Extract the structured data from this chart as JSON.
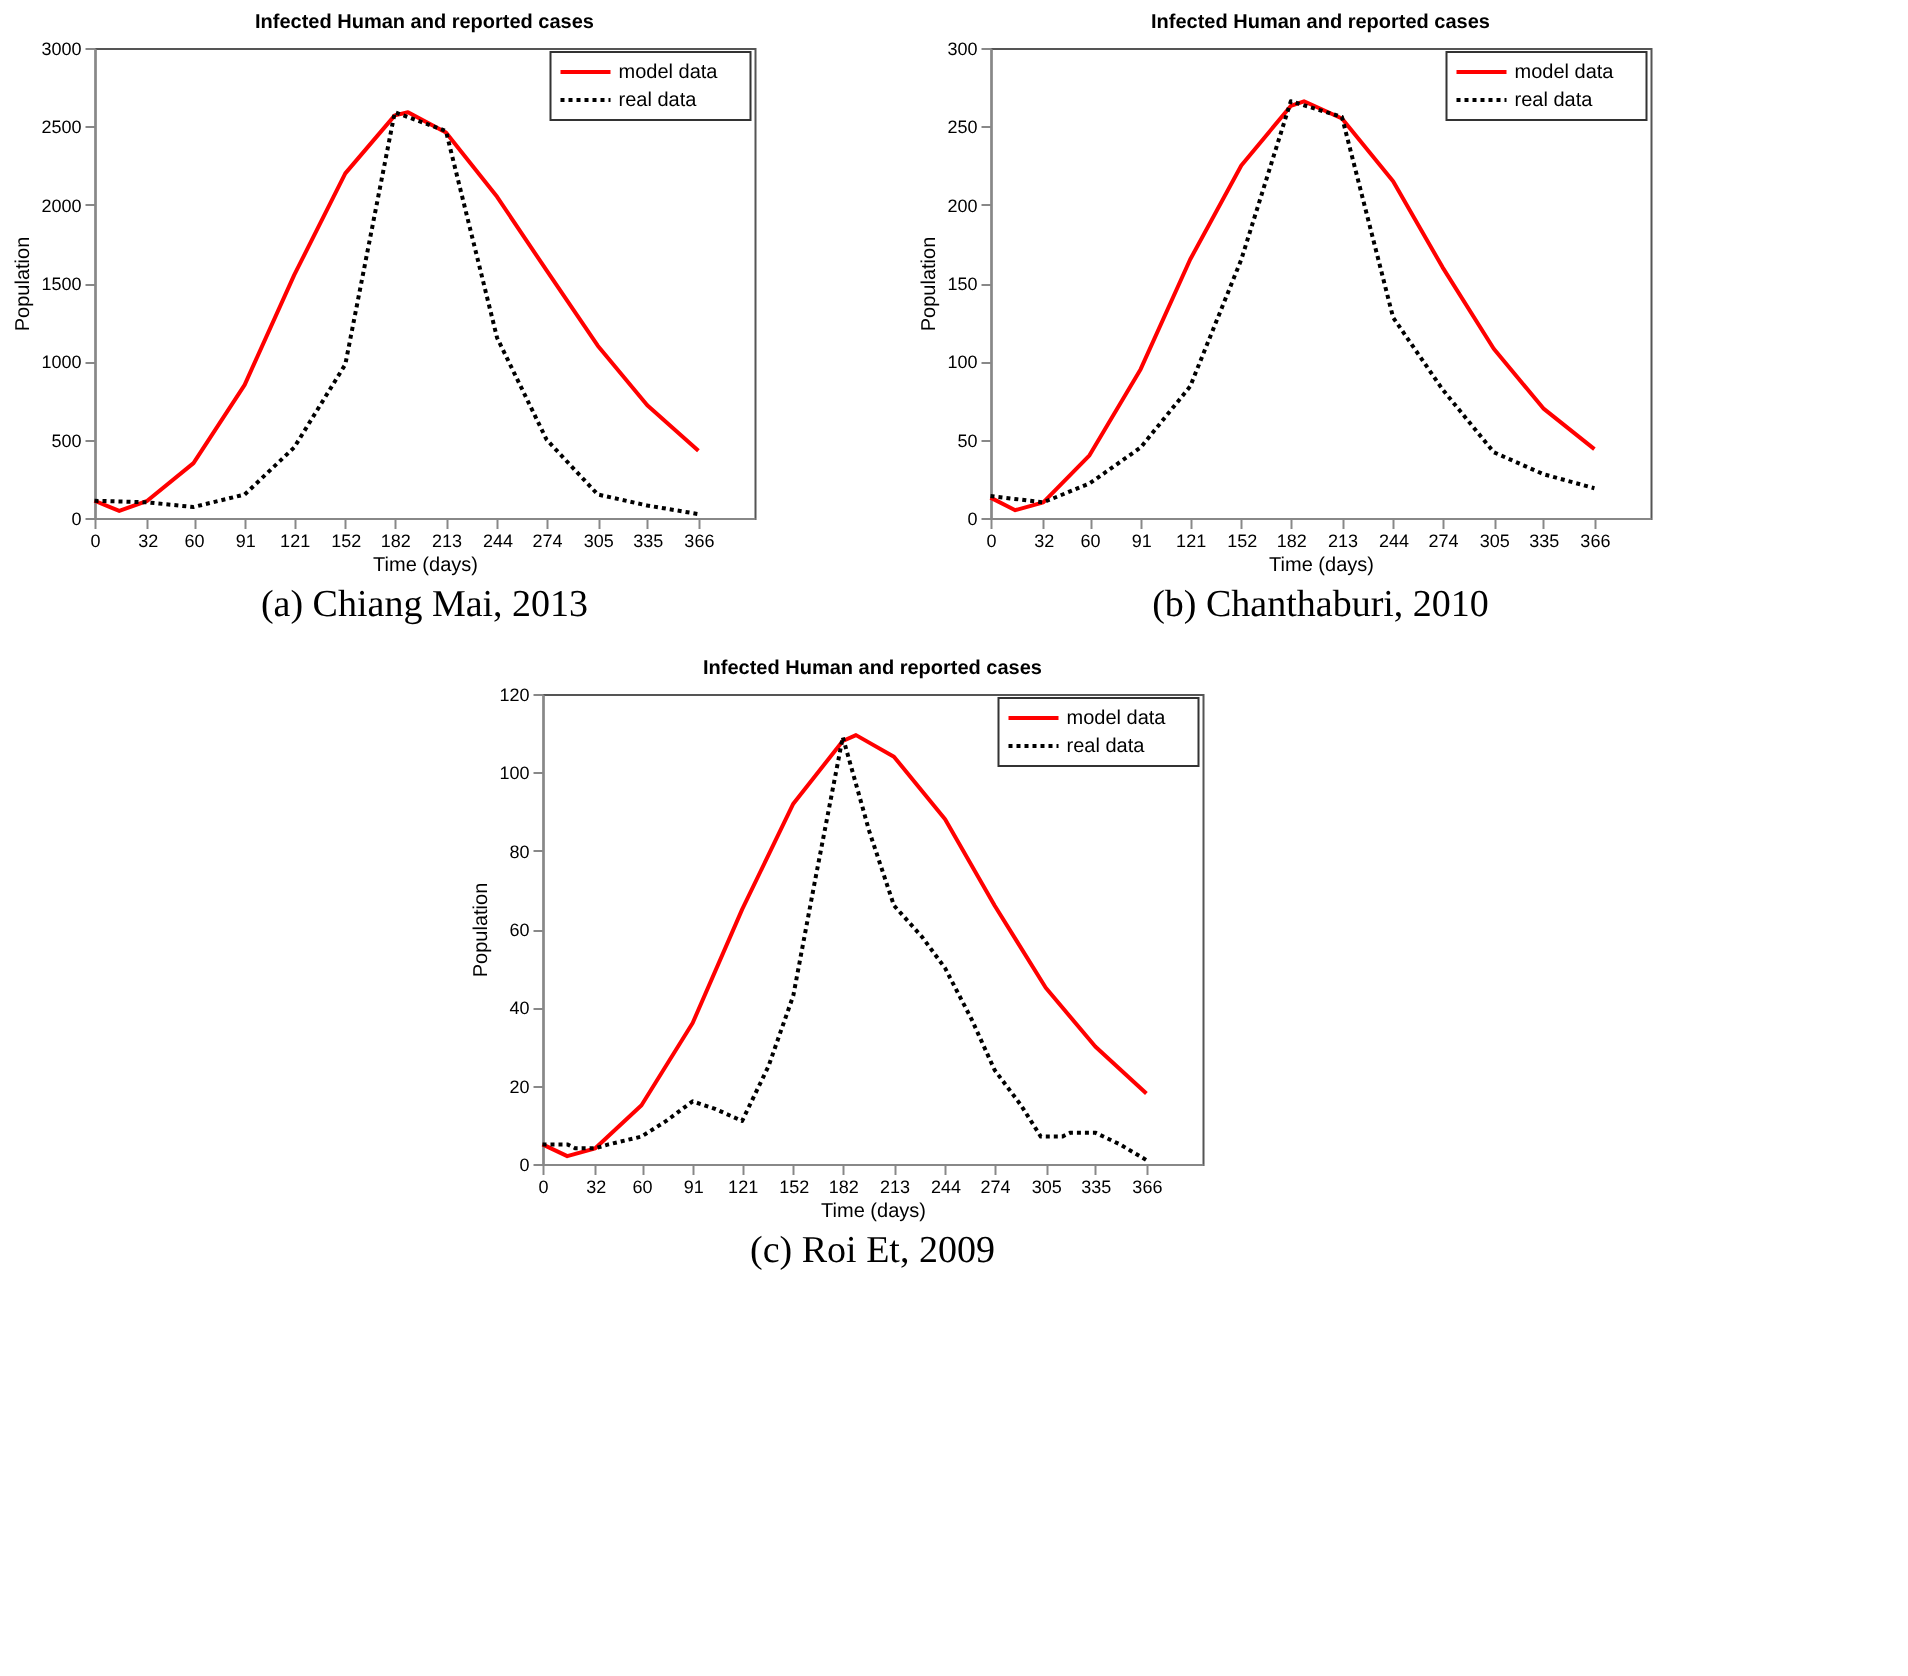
{
  "chart_data": [
    {
      "type": "line",
      "title": "Infected Human and reported cases",
      "xlabel": "Time (days)",
      "ylabel": "Population",
      "annotations": [
        "(a) Chiang Mai, 2013"
      ],
      "xlim": [
        0,
        400
      ],
      "xticks": [
        0,
        32,
        60,
        91,
        121,
        152,
        182,
        213,
        244,
        274,
        305,
        335,
        366
      ],
      "ylim": [
        0,
        3000
      ],
      "yticks": [
        0,
        500,
        1000,
        1500,
        2000,
        2500,
        3000
      ],
      "grid": false,
      "legend": "top right",
      "series": [
        {
          "name": "model data",
          "color": "#ff0000",
          "line_style": "solid",
          "x": [
            0,
            15,
            32,
            60,
            91,
            121,
            152,
            182,
            190,
            213,
            244,
            274,
            305,
            335,
            366
          ],
          "values": [
            110,
            45,
            110,
            350,
            850,
            1550,
            2200,
            2570,
            2590,
            2460,
            2050,
            1580,
            1100,
            720,
            430
          ]
        },
        {
          "name": "real data",
          "color": "#000000",
          "line_style": "dotted",
          "x": [
            0,
            32,
            60,
            91,
            121,
            152,
            182,
            213,
            244,
            274,
            305,
            335,
            366
          ],
          "values": [
            110,
            100,
            70,
            150,
            450,
            980,
            2590,
            2470,
            1150,
            500,
            150,
            80,
            25
          ]
        }
      ]
    },
    {
      "type": "line",
      "title": "Infected Human and reported cases",
      "xlabel": "Time (days)",
      "ylabel": "Population",
      "annotations": [
        "(b) Chanthaburi, 2010"
      ],
      "xlim": [
        0,
        400
      ],
      "xticks": [
        0,
        32,
        60,
        91,
        121,
        152,
        182,
        213,
        244,
        274,
        305,
        335,
        366
      ],
      "ylim": [
        0,
        300
      ],
      "yticks": [
        0,
        50,
        100,
        150,
        200,
        250,
        300
      ],
      "grid": false,
      "legend": "top right",
      "series": [
        {
          "name": "model data",
          "color": "#ff0000",
          "line_style": "solid",
          "x": [
            0,
            15,
            32,
            60,
            91,
            121,
            152,
            182,
            190,
            213,
            244,
            274,
            305,
            335,
            366
          ],
          "values": [
            13,
            5,
            10,
            40,
            95,
            165,
            225,
            263,
            266,
            255,
            215,
            160,
            108,
            70,
            44
          ]
        },
        {
          "name": "real data",
          "color": "#000000",
          "line_style": "dotted",
          "x": [
            0,
            32,
            60,
            91,
            121,
            152,
            182,
            213,
            244,
            274,
            305,
            335,
            366
          ],
          "values": [
            14,
            10,
            22,
            45,
            84,
            165,
            266,
            256,
            128,
            82,
            42,
            28,
            19
          ]
        }
      ]
    },
    {
      "type": "line",
      "title": "Infected Human and reported cases",
      "xlabel": "Time (days)",
      "ylabel": "Population",
      "annotations": [
        "(c) Roi Et, 2009"
      ],
      "xlim": [
        0,
        400
      ],
      "xticks": [
        0,
        32,
        60,
        91,
        121,
        152,
        182,
        213,
        244,
        274,
        305,
        335,
        366
      ],
      "ylim": [
        0,
        120
      ],
      "yticks": [
        0,
        20,
        40,
        60,
        80,
        100,
        120
      ],
      "grid": false,
      "legend": "top right",
      "series": [
        {
          "name": "model data",
          "color": "#ff0000",
          "line_style": "solid",
          "x": [
            0,
            15,
            32,
            60,
            91,
            121,
            152,
            182,
            190,
            213,
            244,
            274,
            305,
            335,
            366
          ],
          "values": [
            5,
            2,
            4,
            15,
            36,
            65,
            92,
            108,
            109.5,
            104,
            88,
            66,
            45,
            30,
            18
          ]
        },
        {
          "name": "real data",
          "color": "#000000",
          "line_style": "dotted",
          "x": [
            0,
            15,
            20,
            32,
            40,
            60,
            75,
            91,
            105,
            121,
            137,
            152,
            165,
            182,
            198,
            213,
            230,
            244,
            260,
            274,
            290,
            302,
            315,
            320,
            335,
            350,
            366
          ],
          "values": [
            5,
            5,
            4,
            4,
            5,
            7,
            11,
            16,
            14,
            11,
            25,
            43,
            72,
            109,
            85,
            66,
            58,
            50,
            37,
            24,
            15,
            7,
            7,
            8,
            8,
            5,
            1
          ]
        }
      ]
    }
  ]
}
